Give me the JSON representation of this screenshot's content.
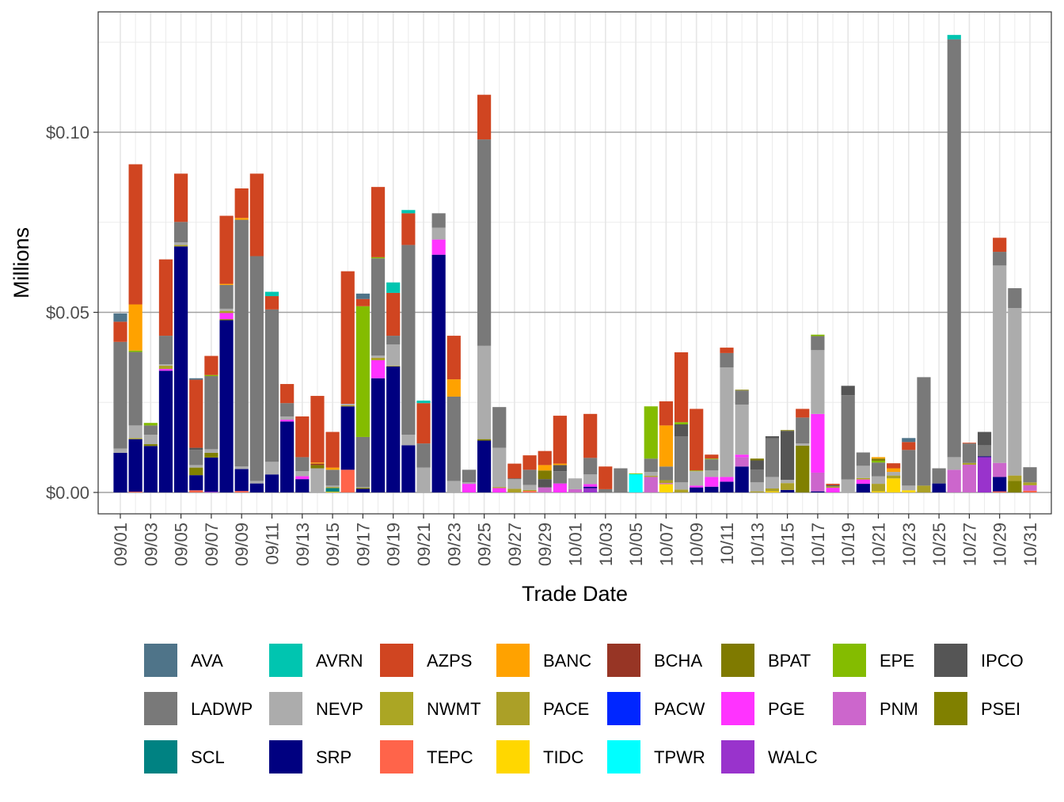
{
  "chart_data": {
    "type": "bar",
    "stacked": true,
    "xlabel": "Trade Date",
    "ylabel": "Millions",
    "ylim": [
      -0.006,
      0.133
    ],
    "y_ticks": [
      0,
      0.05,
      0.1
    ],
    "y_tick_labels": [
      "$0.00",
      "$0.05",
      "$0.10"
    ],
    "grid": true,
    "legend_position": "bottom",
    "dates": [
      "09/01",
      "09/02",
      "09/03",
      "09/04",
      "09/05",
      "09/06",
      "09/07",
      "09/08",
      "09/09",
      "09/10",
      "09/11",
      "09/12",
      "09/13",
      "09/14",
      "09/15",
      "09/16",
      "09/17",
      "09/18",
      "09/19",
      "09/20",
      "09/21",
      "09/22",
      "09/23",
      "09/24",
      "09/25",
      "09/26",
      "09/27",
      "09/28",
      "09/29",
      "09/30",
      "10/01",
      "10/02",
      "10/03",
      "10/04",
      "10/05",
      "10/06",
      "10/07",
      "10/08",
      "10/09",
      "10/10",
      "10/11",
      "10/12",
      "10/13",
      "10/14",
      "10/15",
      "10/16",
      "10/17",
      "10/18",
      "10/19",
      "10/20",
      "10/21",
      "10/22",
      "10/23",
      "10/24",
      "10/25",
      "10/26",
      "10/27",
      "10/28",
      "10/29",
      "10/30",
      "10/31"
    ],
    "x_tick_labels": [
      "09/01",
      "09/03",
      "09/05",
      "09/07",
      "09/09",
      "09/11",
      "09/13",
      "09/15",
      "09/17",
      "09/19",
      "09/21",
      "09/23",
      "09/25",
      "09/27",
      "09/29",
      "10/01",
      "10/03",
      "10/05",
      "10/07",
      "10/09",
      "10/11",
      "10/13",
      "10/15",
      "10/17",
      "10/19",
      "10/21",
      "10/23",
      "10/25",
      "10/27",
      "10/29",
      "10/31"
    ],
    "legend": [
      {
        "name": "AVA",
        "color": "#4f7489"
      },
      {
        "name": "AVRN",
        "color": "#00c5b0"
      },
      {
        "name": "AZPS",
        "color": "#d04521"
      },
      {
        "name": "BANC",
        "color": "#ffa200"
      },
      {
        "name": "BCHA",
        "color": "#973525"
      },
      {
        "name": "BPAT",
        "color": "#7f7a00"
      },
      {
        "name": "EPE",
        "color": "#84bc00"
      },
      {
        "name": "IPCO",
        "color": "#555555"
      },
      {
        "name": "LADWP",
        "color": "#797979"
      },
      {
        "name": "NEVP",
        "color": "#acacac"
      },
      {
        "name": "NWMT",
        "color": "#aba624"
      },
      {
        "name": "PACE",
        "color": "#aba027"
      },
      {
        "name": "PACW",
        "color": "#0026ff"
      },
      {
        "name": "PGE",
        "color": "#ff33ff"
      },
      {
        "name": "PNM",
        "color": "#cc66cc"
      },
      {
        "name": "PSEI",
        "color": "#808000"
      },
      {
        "name": "SCL",
        "color": "#008282"
      },
      {
        "name": "SRP",
        "color": "#000080"
      },
      {
        "name": "TEPC",
        "color": "#ff644a"
      },
      {
        "name": "TIDC",
        "color": "#ffd700"
      },
      {
        "name": "TPWR",
        "color": "#00ffff"
      },
      {
        "name": "WALC",
        "color": "#9933cc"
      }
    ],
    "stacks": {
      "09/01": {
        "SRP": 0.011,
        "NEVP": 0.0012,
        "LADWP": 0.0296,
        "AZPS": 0.0056,
        "AVA": 0.0023
      },
      "09/02": {
        "TEPC": 0.0002,
        "SRP": 0.0146,
        "NWMT": 0.0003,
        "NEVP": 0.0035,
        "LADWP": 0.0204,
        "EPE": 0.0004,
        "BANC": 0.0128,
        "AZPS": 0.0389
      },
      "09/03": {
        "SRP": 0.0129,
        "PSEI": 0.0005,
        "NEVP": 0.0026,
        "LADWP": 0.0026,
        "EPE": 0.0007
      },
      "09/04": {
        "SRP": 0.0338,
        "PGE": 0.0005,
        "PACE": 0.0009,
        "NEVP": 0.0004,
        "LADWP": 0.0079,
        "AZPS": 0.0212
      },
      "09/05": {
        "SRP": 0.0683,
        "PACE": 0.0004,
        "NEVP": 0.0007,
        "LADWP": 0.0057,
        "AZPS": 0.0134
      },
      "09/06": {
        "TEPC": 0.0006,
        "SRP": 0.0042,
        "PSEI": 0.0021,
        "NEVP": 0.0007,
        "LADWP": 0.0042,
        "IPCO": 0.0006,
        "AZPS": 0.0189,
        "AVA": 0.0004
      },
      "09/07": {
        "WALC": 0.0002,
        "SRP": 0.0095,
        "PSEI": 0.0013,
        "NEVP": 0.001,
        "LADWP": 0.0203,
        "EPE": 0.0003,
        "AZPS": 0.0053
      },
      "09/08": {
        "SRP": 0.0478,
        "PSEI": 0.0003,
        "PGE": 0.0017,
        "PACE": 0.0006,
        "NEVP": 0.0006,
        "LADWP": 0.0066,
        "BANC": 0.0003,
        "AZPS": 0.0189
      },
      "09/09": {
        "TEPC": 0.0004,
        "SRP": 0.0061,
        "NEVP": 0.0007,
        "LADWP": 0.0685,
        "BANC": 0.0005,
        "AZPS": 0.0082
      },
      "09/10": {
        "SRP": 0.0025,
        "NEVP": 0.0007,
        "LADWP": 0.0624,
        "AZPS": 0.0229
      },
      "09/11": {
        "SRP": 0.005,
        "NEVP": 0.0035,
        "LADWP": 0.0423,
        "AZPS": 0.0037,
        "AVRN": 0.0012
      },
      "09/12": {
        "SRP": 0.0197,
        "PGE": 0.0005,
        "NEVP": 0.0009,
        "LADWP": 0.0037,
        "AZPS": 0.0053
      },
      "09/13": {
        "SRP": 0.0037,
        "PGE": 0.0008,
        "NEVP": 0.0014,
        "LADWP": 0.0039,
        "AZPS": 0.0113
      },
      "09/14": {
        "NEVP": 0.0067,
        "BPAT": 0.0009,
        "BCHA": 0.0004,
        "BANC": 0.0003,
        "AZPS": 0.0185
      },
      "09/15": {
        "TIDC": 0.0002,
        "SCL": 0.001,
        "PACE": 0.0003,
        "NEVP": 0.0004,
        "LADWP": 0.0044,
        "BANC": 0.0006,
        "AZPS": 0.0099
      },
      "09/16": {
        "TEPC": 0.0063,
        "SRP": 0.0176,
        "PACE": 0.0003,
        "NEVP": 0.0004,
        "AZPS": 0.0368
      },
      "09/17": {
        "SRP": 0.001,
        "PSEI": 0.0003,
        "NEVP": 0.0002,
        "LADWP": 0.0139,
        "EPE": 0.0363,
        "AZPS": 0.002,
        "AVA": 0.0015
      },
      "09/18": {
        "SRP": 0.0317,
        "PGE": 0.005,
        "PACE": 0.0007,
        "NEVP": 0.0006,
        "LADWP": 0.027,
        "EPE": 0.0003,
        "AZPS": 0.0195
      },
      "09/19": {
        "SRP": 0.035,
        "PACE": 0.0002,
        "NEVP": 0.0059,
        "LADWP": 0.0024,
        "AZPS": 0.0119,
        "AVRN": 0.0029
      },
      "09/20": {
        "SRP": 0.0131,
        "NEVP": 0.0029,
        "LADWP": 0.0527,
        "AZPS": 0.0088,
        "AVRN": 0.0009
      },
      "09/21": {
        "NEVP": 0.0069,
        "LADWP": 0.0067,
        "AZPS": 0.0112,
        "AVRN": 0.0007
      },
      "09/22": {
        "SRP": 0.066,
        "PGE": 0.0042,
        "NEVP": 0.0033,
        "LADWP": 0.004
      },
      "09/23": {
        "NEVP": 0.0032,
        "LADWP": 0.0234,
        "BANC": 0.0048,
        "AZPS": 0.0121
      },
      "09/24": {
        "PGE": 0.0024,
        "NEVP": 0.0004,
        "LADWP": 0.0035
      },
      "09/25": {
        "SRP": 0.0144,
        "PSEI": 0.0004,
        "NEVP": 0.0259,
        "LADWP": 0.0573,
        "AZPS": 0.0124
      },
      "09/26": {
        "PGE": 0.0012,
        "PACE": 0.0003,
        "NEVP": 0.0109,
        "LADWP": 0.0113
      },
      "09/27": {
        "PACE": 0.001,
        "NEVP": 0.0027,
        "IPCO": 0.0002,
        "AZPS": 0.0041
      },
      "09/28": {
        "TEPC": 0.0004,
        "PACE": 0.0003,
        "NEVP": 0.0014,
        "LADWP": 0.0042,
        "AZPS": 0.004
      },
      "09/29": {
        "PNM": 0.0014,
        "IPCO": 0.0023,
        "BPAT": 0.0024,
        "BANC": 0.0015,
        "AZPS": 0.0039
      },
      "09/30": {
        "PGE": 0.0025,
        "LADWP": 0.0034,
        "IPCO": 0.0017,
        "BANC": 0.0004,
        "AZPS": 0.0133
      },
      "10/01": {
        "PNM": 0.0009,
        "NEVP": 0.003
      },
      "10/02": {
        "WALC": 0.0012,
        "SRP": 0.0004,
        "PGE": 0.0007,
        "NEVP": 0.0027,
        "LADWP": 0.0046,
        "AZPS": 0.0122
      },
      "10/03": {
        "LADWP": 0.0009,
        "AZPS": 0.0063
      },
      "10/04": {
        "LADWP": 0.0067
      },
      "10/05": {
        "TPWR": 0.0051,
        "EPE": 0.0002
      },
      "10/06": {
        "PNM": 0.0043,
        "PACE": 0.0003,
        "NEVP": 0.0011,
        "LADWP": 0.0037,
        "EPE": 0.0145
      },
      "10/07": {
        "TIDC": 0.0023,
        "PNM": 0.0003,
        "PACE": 0.0008,
        "LADWP": 0.0038,
        "BANC": 0.0114,
        "AZPS": 0.0067
      },
      "10/08": {
        "PACE": 0.0008,
        "NEVP": 0.002,
        "LADWP": 0.0128,
        "IPCO": 0.0033,
        "EPE": 0.0006,
        "AZPS": 0.0194
      },
      "10/09": {
        "SRP": 0.0014,
        "PGE": 0.0005,
        "NEVP": 0.004,
        "EPE": 0.0002,
        "AZPS": 0.0171
      },
      "10/10": {
        "SRP": 0.0016,
        "PGE": 0.0027,
        "NEVP": 0.0018,
        "LADWP": 0.0031,
        "EPE": 0.0002,
        "AZPS": 0.0011
      },
      "10/11": {
        "SRP": 0.003,
        "PGE": 0.0013,
        "NEVP": 0.0304,
        "LADWP": 0.004,
        "AZPS": 0.0015
      },
      "10/12": {
        "SRP": 0.0072,
        "PNM": 0.0026,
        "PGE": 0.0007,
        "NEVP": 0.0139,
        "LADWP": 0.0039,
        "BPAT": 0.0002
      },
      "10/13": {
        "PACE": 0.0003,
        "NEVP": 0.0025,
        "LADWP": 0.0035,
        "IPCO": 0.0026,
        "BPAT": 0.0005
      },
      "10/14": {
        "TIDC": 0.0003,
        "PACE": 0.0008,
        "NEVP": 0.0032,
        "LADWP": 0.0107,
        "IPCO": 0.0006
      },
      "10/15": {
        "SRP": 0.0007,
        "PACE": 0.0019,
        "NEVP": 0.0009,
        "IPCO": 0.0136,
        "BPAT": 0.0002
      },
      "10/16": {
        "PSEI": 0.013,
        "NEVP": 0.0006,
        "LADWP": 0.0072,
        "AZPS": 0.0024
      },
      "10/17": {
        "SRP": 0.0003,
        "PNM": 0.0052,
        "PGE": 0.0163,
        "NEVP": 0.0177,
        "LADWP": 0.0039,
        "EPE": 0.0004
      },
      "10/18": {
        "PGE": 0.0013,
        "PACE": 0.0004,
        "IPCO": 0.0003,
        "AZPS": 0.0004
      },
      "10/19": {
        "NEVP": 0.0036,
        "LADWP": 0.0234,
        "IPCO": 0.0026
      },
      "10/20": {
        "SRP": 0.0024,
        "PGE": 0.0012,
        "NWMT": 0.0004,
        "NEVP": 0.0034,
        "LADWP": 0.0037
      },
      "10/21": {
        "TIDC": 0.0003,
        "PACE": 0.0021,
        "NEVP": 0.0021,
        "LADWP": 0.0038,
        "EPE": 0.0005,
        "BPAT": 0.0006,
        "BANC": 0.0004
      },
      "10/22": {
        "TIDC": 0.0039,
        "PACE": 0.0008,
        "NEVP": 0.001,
        "BANC": 0.001,
        "AZPS": 0.0014
      },
      "10/23": {
        "TIDC": 0.0006,
        "NEVP": 0.0013,
        "LADWP": 0.0099,
        "AZPS": 0.0022,
        "AVA": 0.0011
      },
      "10/24": {
        "PACE": 0.0019,
        "LADWP": 0.0301
      },
      "10/25": {
        "SRP": 0.0025,
        "LADWP": 0.0042
      },
      "10/26": {
        "PNM": 0.0063,
        "NEVP": 0.0035,
        "LADWP": 0.116,
        "AVRN": 0.0012
      },
      "10/27": {
        "PNM": 0.0077,
        "PACE": 0.0005,
        "LADWP": 0.0054,
        "AZPS": 0.0002
      },
      "10/28": {
        "WALC": 0.0098,
        "SRP": 0.0002,
        "LADWP": 0.0031,
        "IPCO": 0.0037
      },
      "10/29": {
        "TEPC": 0.0003,
        "SRP": 0.004,
        "PNM": 0.0039,
        "NEVP": 0.0548,
        "LADWP": 0.0038,
        "AZPS": 0.0039
      },
      "10/30": {
        "PSEI": 0.0032,
        "PACE": 0.0015,
        "NEVP": 0.0465,
        "LADWP": 0.0055
      },
      "10/31": {
        "TEPC": 0.0005,
        "PNM": 0.0015,
        "PACE": 0.0008,
        "LADWP": 0.0042
      }
    }
  }
}
